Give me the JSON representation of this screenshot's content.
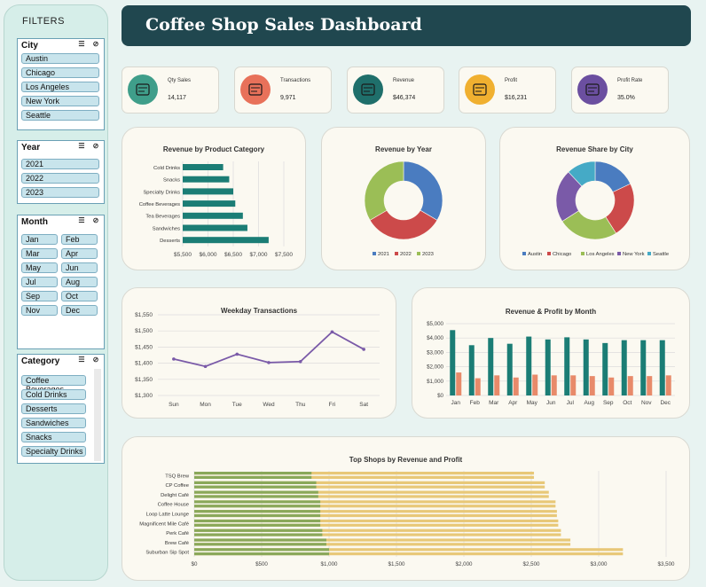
{
  "sidebar": {
    "title": "FILTERS",
    "city": {
      "label": "City",
      "items": [
        "Austin",
        "Chicago",
        "Los Angeles",
        "New York",
        "Seattle"
      ]
    },
    "year": {
      "label": "Year",
      "items": [
        "2021",
        "2022",
        "2023"
      ]
    },
    "month": {
      "label": "Month",
      "items": [
        "Jan",
        "Feb",
        "Mar",
        "Apr",
        "May",
        "Jun",
        "Jul",
        "Aug",
        "Sep",
        "Oct",
        "Nov",
        "Dec"
      ]
    },
    "category": {
      "label": "Category",
      "items": [
        "Coffee Beverages",
        "Cold Drinks",
        "Desserts",
        "Sandwiches",
        "Snacks",
        "Specialty Drinks"
      ]
    }
  },
  "header": {
    "title": "Coffee Shop Sales Dashboard"
  },
  "kpis": [
    {
      "label": "Qty Sales",
      "value": "14,117",
      "icon": "coffee-cups-icon",
      "color": "#3f9e8a"
    },
    {
      "label": "Transactions",
      "value": "9,971",
      "icon": "price-tag-icon",
      "color": "#e8715a"
    },
    {
      "label": "Revenue",
      "value": "$46,374",
      "icon": "cash-register-icon",
      "color": "#1f6f6b"
    },
    {
      "label": "Profit",
      "value": "$16,231",
      "icon": "profit-chart-icon",
      "color": "#f0b030"
    },
    {
      "label": "Profit Rate",
      "value": "35.0%",
      "icon": "money-bag-icon",
      "color": "#6b4fa0"
    }
  ],
  "chart_data": [
    {
      "id": "category",
      "type": "bar",
      "title": "Revenue by Product Category",
      "orientation": "horizontal",
      "categories": [
        "Cold Drinks",
        "Snacks",
        "Specialty Drinks",
        "Coffee Beverages",
        "Tea Beverages",
        "Sandwiches",
        "Desserts"
      ],
      "values": [
        6300,
        6420,
        6500,
        6540,
        6690,
        6780,
        7200
      ],
      "xlim": [
        5500,
        7500
      ],
      "ticks": [
        "$5,500",
        "$6,000",
        "$6,500",
        "$7,000",
        "$7,500"
      ],
      "color": "#1b7d75"
    },
    {
      "id": "year",
      "type": "pie",
      "title": "Revenue by Year",
      "donut": true,
      "labels": [
        "2021",
        "2022",
        "2023"
      ],
      "values": [
        33.5,
        33.0,
        33.5
      ],
      "colors": [
        "#4a7cc0",
        "#cc4a4a",
        "#9bbe56"
      ]
    },
    {
      "id": "city",
      "type": "pie",
      "title": "Revenue Share by City",
      "donut": true,
      "labels": [
        "Austin",
        "Chicago",
        "Los Angeles",
        "New York",
        "Seattle"
      ],
      "values": [
        18,
        23,
        25,
        22,
        12
      ],
      "colors": [
        "#4a7cc0",
        "#cc4a4a",
        "#9bbe56",
        "#7a5aa8",
        "#45aac6"
      ]
    },
    {
      "id": "weekday",
      "type": "line",
      "title": "Weekday Transactions",
      "categories": [
        "Sun",
        "Mon",
        "Tue",
        "Wed",
        "Thu",
        "Fri",
        "Sat"
      ],
      "values": [
        1413,
        1390,
        1428,
        1402,
        1405,
        1497,
        1443
      ],
      "ylim": [
        1300,
        1550
      ],
      "ticks": [
        "$1,300",
        "$1,350",
        "$1,400",
        "$1,450",
        "$1,500",
        "$1,550"
      ],
      "color": "#7a5aa8"
    },
    {
      "id": "monthly",
      "type": "bar",
      "title": "Revenue & Profit by Month",
      "categories": [
        "Jan",
        "Feb",
        "Mar",
        "Apr",
        "May",
        "Jun",
        "Jul",
        "Aug",
        "Sep",
        "Oct",
        "Nov",
        "Dec"
      ],
      "series": [
        {
          "values": [
            4550,
            3500,
            4000,
            3600,
            4100,
            3900,
            4050,
            3900,
            3650,
            3850,
            3850,
            3850
          ],
          "color": "#1b7d75"
        },
        {
          "values": [
            1600,
            1200,
            1400,
            1250,
            1450,
            1400,
            1400,
            1350,
            1250,
            1350,
            1350,
            1400
          ],
          "color": "#e88a6a"
        }
      ],
      "ylim": [
        0,
        5000
      ],
      "ticks": [
        "$0",
        "$1,000",
        "$2,000",
        "$3,000",
        "$4,000",
        "$5,000"
      ]
    },
    {
      "id": "shops",
      "type": "bar",
      "title": "Top Shops by Revenue and Profit",
      "orientation": "horizontal",
      "categories": [
        "TSQ Brew",
        "CP Coffee",
        "Delight Café",
        "Coffee House",
        "Loop Latte Lounge",
        "Magnificent Mile Café",
        "Perk Café",
        "Brew Café",
        "Suburban Sip Spot"
      ],
      "series": [
        {
          "values": [
            870,
            905,
            920,
            935,
            935,
            935,
            950,
            980,
            1000
          ],
          "color": "#8aa85a"
        },
        {
          "values": [
            2520,
            2600,
            2630,
            2680,
            2690,
            2700,
            2720,
            2790,
            3180
          ],
          "color": "#e8c878"
        }
      ],
      "xlim": [
        0,
        3500
      ],
      "ticks": [
        "$0",
        "$500",
        "$1,000",
        "$1,500",
        "$2,000",
        "$2,500",
        "$3,000",
        "$3,500"
      ]
    }
  ]
}
